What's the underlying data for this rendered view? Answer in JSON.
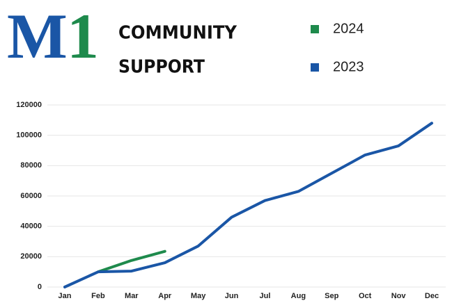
{
  "chart_data": {
    "type": "line",
    "logo": [
      "M",
      "1"
    ],
    "title": [
      "COMMUNITY",
      "SUPPORT"
    ],
    "categories": [
      "Jan",
      "Feb",
      "Mar",
      "Apr",
      "May",
      "Jun",
      "Jul",
      "Aug",
      "Sep",
      "Oct",
      "Nov",
      "Dec"
    ],
    "series": [
      {
        "name": "2024",
        "color": "#1e8a4c",
        "values": [
          null,
          10000,
          17500,
          23500,
          null,
          null,
          null,
          null,
          null,
          null,
          null,
          null
        ]
      },
      {
        "name": "2023",
        "color": "#1a56a6",
        "values": [
          0,
          10000,
          10500,
          16000,
          27000,
          46000,
          57000,
          63000,
          75000,
          87000,
          93000,
          108000
        ]
      }
    ],
    "ylim": [
      0,
      120000
    ],
    "yticks": [
      0,
      20000,
      40000,
      60000,
      80000,
      100000,
      120000
    ],
    "grid": true
  }
}
